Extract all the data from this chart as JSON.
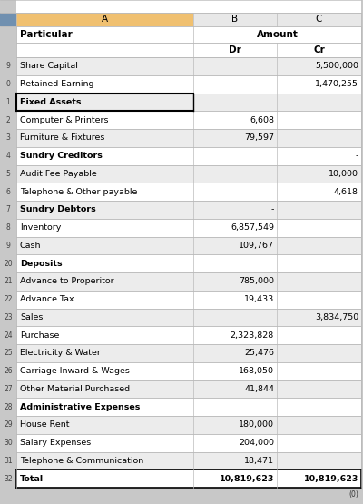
{
  "header_bg_col_a": "#f0c070",
  "header_bg_col_bc": "#e8e8e8",
  "row_bg_odd": "#ececec",
  "row_bg_even": "#ffffff",
  "border_light": "#bbbbbb",
  "border_dark": "#000000",
  "rows": [
    {
      "label": "Share Capital",
      "bold": false,
      "dr": "",
      "cr": "5,500,000"
    },
    {
      "label": "Retained Earning",
      "bold": false,
      "dr": "",
      "cr": "1,470,255"
    },
    {
      "label": "Fixed Assets",
      "bold": true,
      "dr": "",
      "cr": "",
      "box": true
    },
    {
      "label": "Computer & Printers",
      "bold": false,
      "dr": "6,608",
      "cr": ""
    },
    {
      "label": "Furniture & Fixtures",
      "bold": false,
      "dr": "79,597",
      "cr": ""
    },
    {
      "label": "Sundry Creditors",
      "bold": true,
      "dr": "",
      "cr": "-"
    },
    {
      "label": "Audit Fee Payable",
      "bold": false,
      "dr": "",
      "cr": "10,000"
    },
    {
      "label": "Telephone & Other payable",
      "bold": false,
      "dr": "",
      "cr": "4,618"
    },
    {
      "label": "Sundry Debtors",
      "bold": true,
      "dr": "-",
      "cr": ""
    },
    {
      "label": "Inventory",
      "bold": false,
      "dr": "6,857,549",
      "cr": ""
    },
    {
      "label": "Cash",
      "bold": false,
      "dr": "109,767",
      "cr": ""
    },
    {
      "label": "Deposits",
      "bold": true,
      "dr": "",
      "cr": ""
    },
    {
      "label": "Advance to Properitor",
      "bold": false,
      "dr": "785,000",
      "cr": ""
    },
    {
      "label": "Advance Tax",
      "bold": false,
      "dr": "19,433",
      "cr": ""
    },
    {
      "label": "Sales",
      "bold": false,
      "dr": "",
      "cr": "3,834,750"
    },
    {
      "label": "Purchase",
      "bold": false,
      "dr": "2,323,828",
      "cr": ""
    },
    {
      "label": "Electricity & Water",
      "bold": false,
      "dr": "25,476",
      "cr": ""
    },
    {
      "label": "Carriage Inward & Wages",
      "bold": false,
      "dr": "168,050",
      "cr": ""
    },
    {
      "label": "Other Material Purchased",
      "bold": false,
      "dr": "41,844",
      "cr": ""
    },
    {
      "label": "Administrative Expenses",
      "bold": true,
      "dr": "",
      "cr": ""
    },
    {
      "label": "House Rent",
      "bold": false,
      "dr": "180,000",
      "cr": ""
    },
    {
      "label": "Salary Expenses",
      "bold": false,
      "dr": "204,000",
      "cr": ""
    },
    {
      "label": "Telephone & Communication",
      "bold": false,
      "dr": "18,471",
      "cr": ""
    },
    {
      "label": "Total",
      "bold": true,
      "dr": "10,819,623",
      "cr": "10,819,623",
      "total": true
    }
  ],
  "row_numbers": [
    "9",
    "0",
    "1",
    "2",
    "3",
    "4",
    "5",
    "6",
    "7",
    "8",
    "9",
    "20",
    "21",
    "22",
    "23",
    "24",
    "25",
    "26",
    "27",
    "28",
    "29",
    "30",
    "31",
    "32"
  ],
  "label_fontsize": 6.8,
  "header_fontsize": 7.5,
  "rownr_fontsize": 5.5
}
